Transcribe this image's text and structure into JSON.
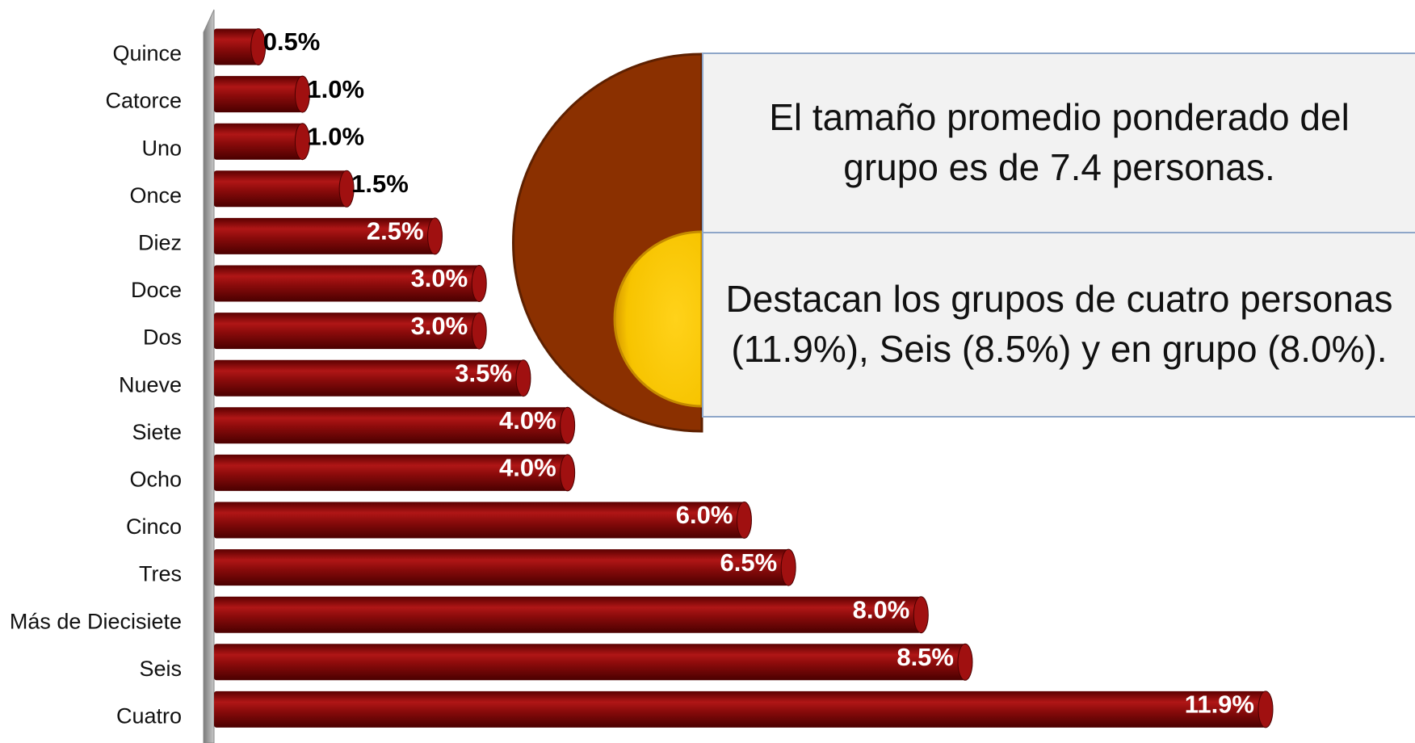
{
  "chart_data": {
    "type": "bar",
    "orientation": "horizontal",
    "categories": [
      "Quince",
      "Catorce",
      "Uno",
      "Once",
      "Diez",
      "Doce",
      "Dos",
      "Nueve",
      "Siete",
      "Ocho",
      "Cinco",
      "Tres",
      "Más de Diecisiete",
      "Seis",
      "Cuatro"
    ],
    "values": [
      0.5,
      1.0,
      1.0,
      1.5,
      2.5,
      3.0,
      3.0,
      3.5,
      4.0,
      4.0,
      6.0,
      6.5,
      8.0,
      8.5,
      11.9
    ],
    "value_labels": [
      "0.5%",
      "1.0%",
      "1.0%",
      "1.5%",
      "2.5%",
      "3.0%",
      "3.0%",
      "3.5%",
      "4.0%",
      "4.0%",
      "6.0%",
      "6.5%",
      "8.0%",
      "8.5%",
      "11.9%"
    ],
    "color": "#a01010",
    "annotations": [
      "El tamaño promedio ponderado del grupo es de 7.4 personas.",
      "Destacan los grupos de cuatro personas (11.9%), Seis  (8.5%) y en grupo (8.0%)."
    ]
  }
}
